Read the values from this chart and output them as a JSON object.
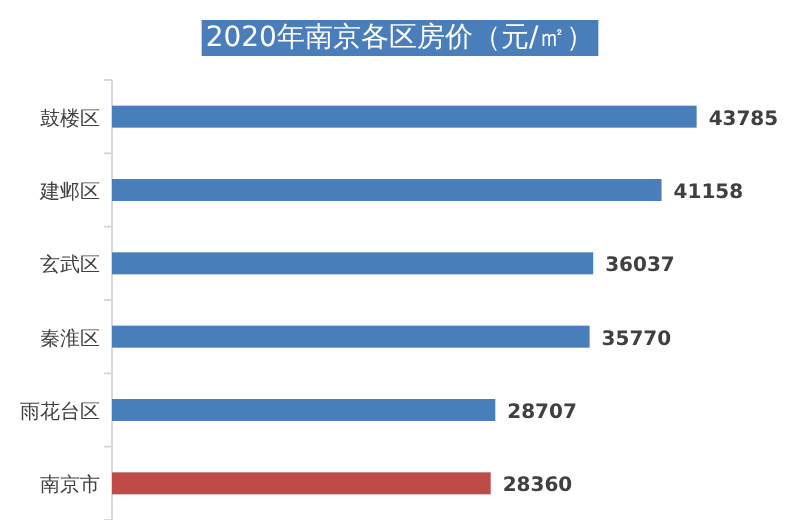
{
  "chart_data": {
    "type": "bar",
    "orientation": "horizontal",
    "title": "2020年南京各区房价（元/㎡）",
    "categories": [
      "鼓楼区",
      "建邺区",
      "玄武区",
      "秦淮区",
      "雨花台区",
      "南京市"
    ],
    "values": [
      43785,
      41158,
      36037,
      35770,
      28707,
      28360
    ],
    "colors": [
      "#4a7ebb",
      "#4a7ebb",
      "#4a7ebb",
      "#4a7ebb",
      "#4a7ebb",
      "#be4b48"
    ],
    "data_labels": true
  }
}
